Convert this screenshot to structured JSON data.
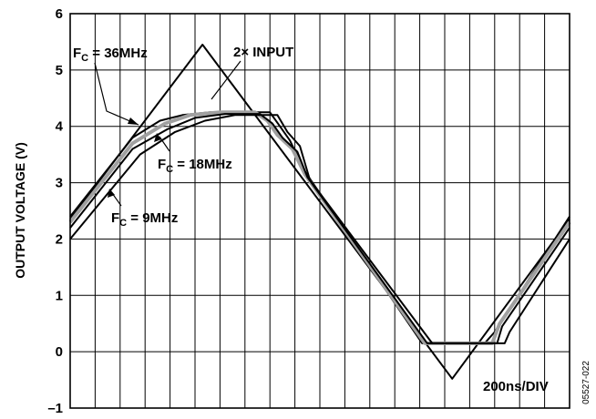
{
  "chart_data": {
    "type": "line",
    "xlabel": "",
    "ylabel": "OUTPUT VOLTAGE (V)",
    "ylim": [
      -1,
      6
    ],
    "yticks": [
      "6",
      "5",
      "4",
      "3",
      "2",
      "1",
      "0",
      "–1"
    ],
    "xdivisions": 20,
    "grid": true,
    "series": [
      {
        "name": "2× INPUT",
        "color": "#000000",
        "x": [
          0,
          5.3,
          15.3,
          20
        ],
        "y": [
          2.35,
          5.45,
          -0.48,
          2.35
        ]
      },
      {
        "name": "F_C = 36MHz",
        "color": "#000000",
        "x": [
          0,
          2.5,
          3.6,
          4.5,
          5.6,
          6.8,
          8.0,
          8.4,
          8.8,
          9.4,
          14.1,
          15.6,
          16.6,
          17.0,
          20
        ],
        "y": [
          2.4,
          3.8,
          4.1,
          4.2,
          4.25,
          4.25,
          4.25,
          4.0,
          3.75,
          3.2,
          0.15,
          0.15,
          0.15,
          0.35,
          2.4
        ]
      },
      {
        "name": "",
        "color": "#a0a0a0",
        "x": [
          0,
          2.5,
          3.8,
          4.8,
          6.0,
          7.4,
          7.9,
          8.3,
          8.9,
          9.4,
          14.2,
          15.8,
          16.9,
          17.2,
          20
        ],
        "y": [
          2.3,
          3.7,
          4.05,
          4.2,
          4.25,
          4.25,
          4.1,
          3.85,
          3.6,
          3.15,
          0.15,
          0.15,
          0.15,
          0.5,
          2.3
        ]
      },
      {
        "name": "F_C = 18MHz",
        "color": "#000000",
        "x": [
          0,
          2.5,
          3.9,
          5.0,
          6.2,
          7.6,
          8.1,
          8.5,
          9.1,
          9.5,
          14.3,
          15.9,
          17.1,
          17.3,
          20
        ],
        "y": [
          2.2,
          3.6,
          3.95,
          4.15,
          4.22,
          4.22,
          4.05,
          3.8,
          3.55,
          3.1,
          0.15,
          0.15,
          0.15,
          0.45,
          2.2
        ]
      },
      {
        "name": "F_C = 9MHz",
        "color": "#000000",
        "x": [
          0,
          2.8,
          4.2,
          5.4,
          6.6,
          7.9,
          8.3,
          8.7,
          9.2,
          9.6,
          14.5,
          16.2,
          17.4,
          17.6,
          20
        ],
        "y": [
          2.0,
          3.5,
          3.9,
          4.1,
          4.2,
          4.2,
          4.2,
          3.9,
          3.65,
          3.05,
          0.15,
          0.15,
          0.15,
          0.35,
          2.0
        ]
      }
    ],
    "annotations": {
      "fc36_main": "F",
      "fc36_sub": "C",
      "fc36_rest": " = 36MHz",
      "input_label": "2× INPUT",
      "fc18_main": "F",
      "fc18_sub": "C",
      "fc18_rest": " = 18MHz",
      "fc9_main": "F",
      "fc9_sub": "C",
      "fc9_rest": " = 9MHz",
      "timebase": "200ns/DIV",
      "figure_id": "05527-022"
    }
  }
}
